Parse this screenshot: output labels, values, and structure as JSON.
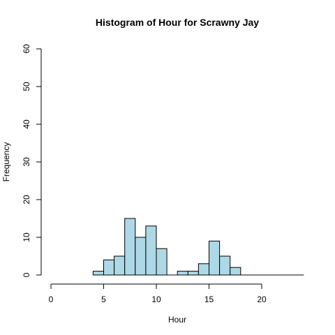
{
  "chart_data": {
    "type": "bar",
    "title": "Histogram of Hour for Scrawny Jay",
    "xlabel": "Hour",
    "ylabel": "Frequency",
    "bar_color": "#ADD8E6",
    "xlim": [
      0,
      24
    ],
    "ylim": [
      0,
      60
    ],
    "x_ticks": [
      0,
      5,
      10,
      15,
      20
    ],
    "x_tick_labels": [
      "0",
      "5",
      "10",
      "15",
      "20"
    ],
    "y_ticks": [
      0,
      10,
      20,
      30,
      40,
      50,
      60
    ],
    "y_tick_labels": [
      "0",
      "10",
      "20",
      "30",
      "40",
      "50",
      "60"
    ],
    "bins": [
      {
        "start": 4,
        "end": 5,
        "count": 1
      },
      {
        "start": 5,
        "end": 6,
        "count": 4
      },
      {
        "start": 6,
        "end": 7,
        "count": 5
      },
      {
        "start": 7,
        "end": 8,
        "count": 15
      },
      {
        "start": 8,
        "end": 9,
        "count": 10
      },
      {
        "start": 9,
        "end": 10,
        "count": 13
      },
      {
        "start": 10,
        "end": 11,
        "count": 7
      },
      {
        "start": 11,
        "end": 12,
        "count": 0
      },
      {
        "start": 12,
        "end": 13,
        "count": 1
      },
      {
        "start": 13,
        "end": 14,
        "count": 1
      },
      {
        "start": 14,
        "end": 15,
        "count": 3
      },
      {
        "start": 15,
        "end": 16,
        "count": 9
      },
      {
        "start": 16,
        "end": 17,
        "count": 5
      },
      {
        "start": 17,
        "end": 18,
        "count": 2
      },
      {
        "start": 18,
        "end": 19,
        "count": 0
      },
      {
        "start": 19,
        "end": 20,
        "count": 0
      },
      {
        "start": 20,
        "end": 21,
        "count": 0
      },
      {
        "start": 21,
        "end": 22,
        "count": 0
      },
      {
        "start": 22,
        "end": 23,
        "count": 0
      },
      {
        "start": 23,
        "end": 24,
        "count": 0
      }
    ]
  }
}
